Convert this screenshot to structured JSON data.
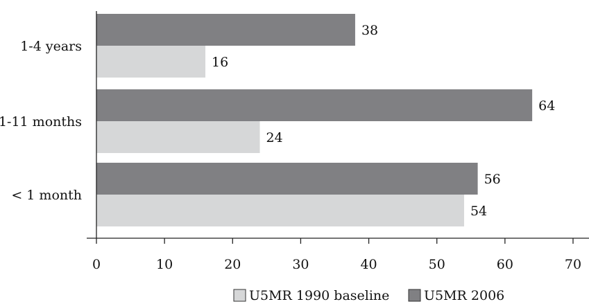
{
  "chart_data": {
    "type": "bar",
    "orientation": "horizontal",
    "categories": [
      "1-4 years",
      "1-11 months",
      "< 1 month"
    ],
    "series": [
      {
        "name": "U5MR 2006",
        "values": [
          38,
          64,
          56
        ],
        "color": "#808083"
      },
      {
        "name": "U5MR 1990 baseline",
        "values": [
          16,
          24,
          54
        ],
        "color": "#d6d7d8"
      }
    ],
    "xlim": [
      0,
      70
    ],
    "xticks": [
      "0",
      "10",
      "20",
      "30",
      "40",
      "50",
      "60",
      "70"
    ],
    "xlabel": "",
    "ylabel": "",
    "title": "",
    "grid": false,
    "legend_position": "bottom",
    "legend_order": [
      "U5MR 1990 baseline",
      "U5MR 2006"
    ]
  }
}
